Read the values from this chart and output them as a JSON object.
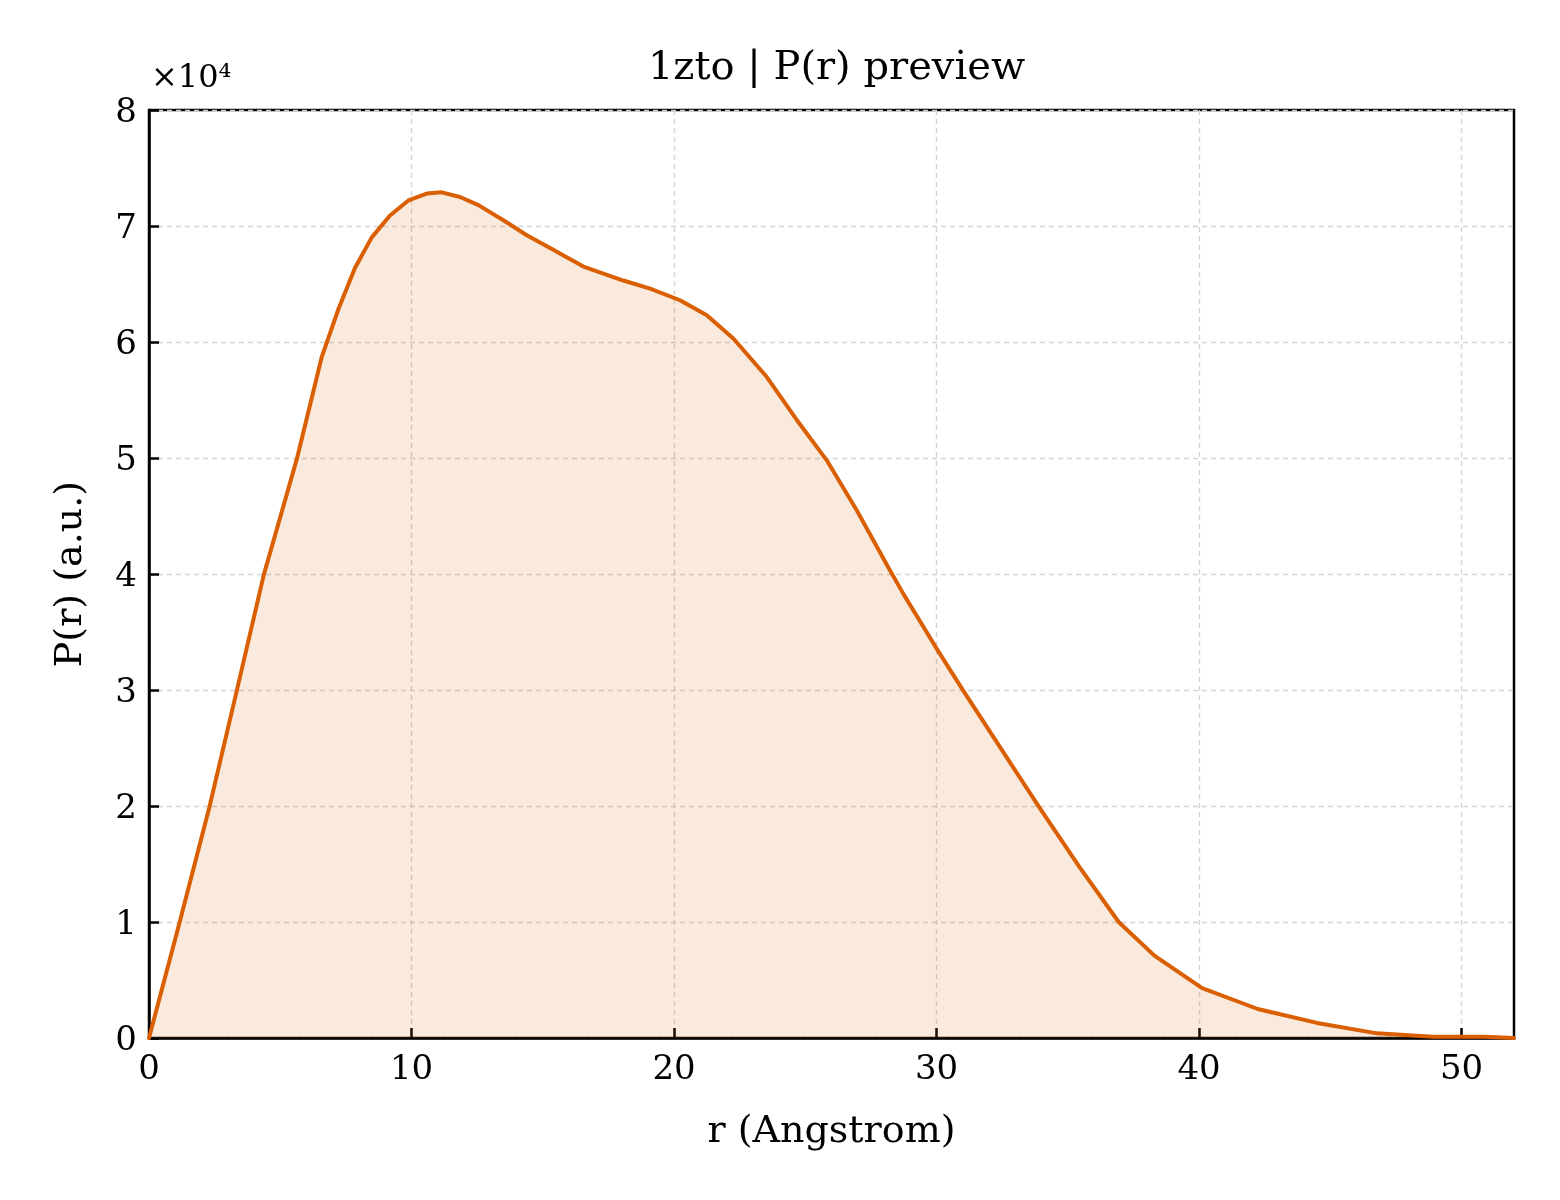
{
  "chart_data": {
    "type": "area",
    "title": "1zto | P(r) preview",
    "xlabel": "r (Angstrom)",
    "ylabel": "P(r) (a.u.)",
    "annotations": [
      "×10⁴"
    ],
    "color": "#d95f02",
    "x": [
      0,
      1.17,
      2.3,
      3.34,
      4.37,
      5.63,
      6.58,
      7.21,
      7.85,
      8.48,
      9.18,
      9.88,
      10.58,
      11.15,
      11.85,
      12.55,
      13.5,
      14.39,
      15.28,
      16.55,
      18.07,
      19.09,
      20.23,
      21.25,
      22.26,
      23.53,
      24.67,
      25.82,
      26.96,
      28.23,
      28.76,
      30.05,
      31.03,
      32.47,
      33.91,
      35.43,
      36.94,
      38.3,
      40.12,
      42.24,
      44.5,
      46.78,
      48.9,
      50.87,
      52
    ],
    "values": [
      0,
      1.0,
      1.99,
      2.99,
      3.99,
      4.99,
      5.87,
      6.28,
      6.64,
      6.9,
      7.09,
      7.22,
      7.28,
      7.29,
      7.25,
      7.18,
      7.05,
      6.92,
      6.81,
      6.65,
      6.53,
      6.46,
      6.36,
      6.23,
      6.03,
      5.7,
      5.33,
      4.98,
      4.55,
      4.03,
      3.82,
      3.34,
      2.99,
      2.49,
      1.99,
      1.48,
      1.0,
      0.71,
      0.43,
      0.25,
      0.13,
      0.04,
      0.01,
      0.01,
      0
    ],
    "xlim": [
      0,
      52
    ],
    "xticks": [
      0,
      10,
      20,
      30,
      40,
      50
    ],
    "ylim": [
      0,
      8
    ],
    "yticks": [
      0,
      1,
      2,
      3,
      4,
      5,
      6,
      7,
      8
    ],
    "grid": true
  }
}
